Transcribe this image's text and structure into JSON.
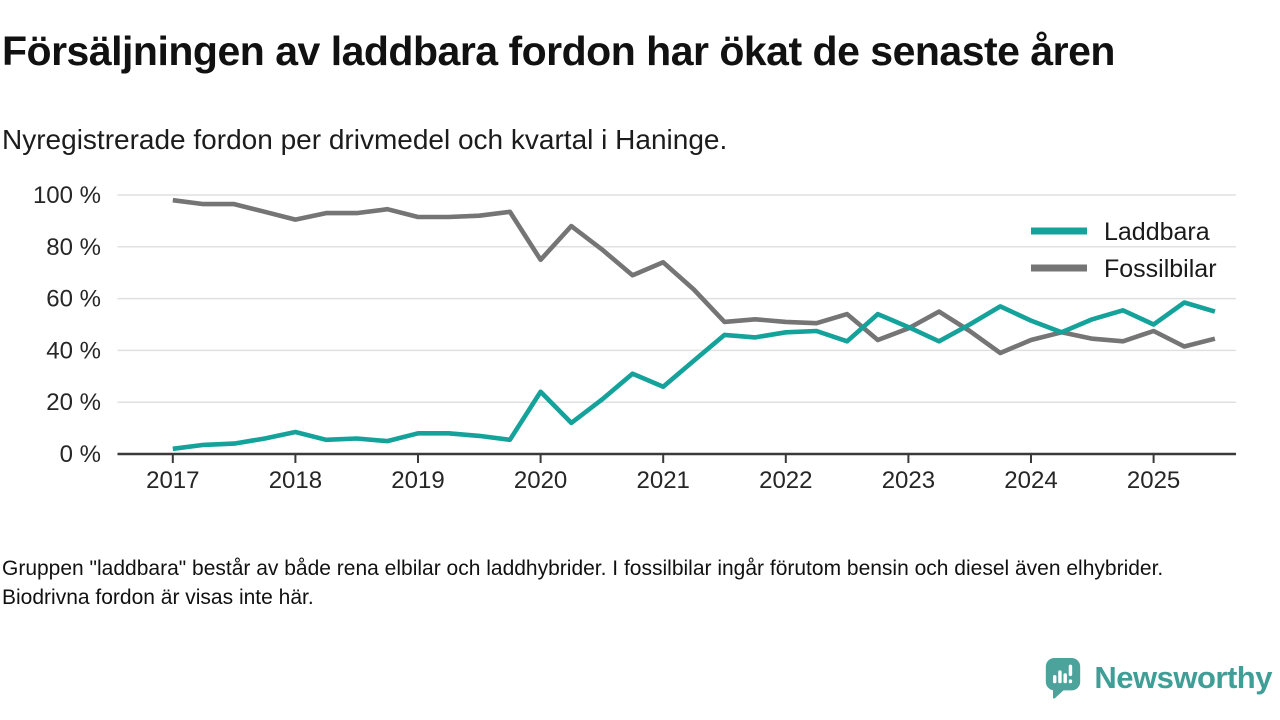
{
  "title": "Försäljningen av laddbara fordon har ökat de senaste åren",
  "subtitle": "Nyregistrerade fordon per drivmedel och kvartal i Haninge.",
  "footnote": "Gruppen \"laddbara\" består av både rena elbilar och laddhybrider. I fossilbilar ingår förutom bensin och diesel även elhybrider. Biodrivna fordon är visas inte här.",
  "branding": {
    "name": "Newsworthy",
    "icon": "bar-chart-speech-bubble-icon",
    "icon_color": "#4ba39b",
    "wordmark_color": "#3f9e96"
  },
  "colors": {
    "laddbara": "#14a29b",
    "fossilbilar": "#757575",
    "axis": "#3a3a3a",
    "gridline": "#e0e0e0",
    "tick_text": "#262626"
  },
  "chart_data": {
    "type": "line",
    "title": "Försäljningen av laddbara fordon har ökat de senaste åren",
    "subtitle": "Nyregistrerade fordon per drivmedel och kvartal i Haninge.",
    "x_unit": "quarter",
    "ylim": [
      0,
      100
    ],
    "grid": "horizontal",
    "legend_position": "top-right-inside",
    "y_ticks": [
      {
        "value": 0,
        "label": "0 %"
      },
      {
        "value": 20,
        "label": "20 %"
      },
      {
        "value": 40,
        "label": "40 %"
      },
      {
        "value": 60,
        "label": "60 %"
      },
      {
        "value": 80,
        "label": "80 %"
      },
      {
        "value": 100,
        "label": "100 %"
      }
    ],
    "x_ticks": [
      "2017",
      "2018",
      "2019",
      "2020",
      "2021",
      "2022",
      "2023",
      "2024",
      "2025"
    ],
    "quarters": [
      "2017 Q1",
      "2017 Q2",
      "2017 Q3",
      "2017 Q4",
      "2018 Q1",
      "2018 Q2",
      "2018 Q3",
      "2018 Q4",
      "2019 Q1",
      "2019 Q2",
      "2019 Q3",
      "2019 Q4",
      "2020 Q1",
      "2020 Q2",
      "2020 Q3",
      "2020 Q4",
      "2021 Q1",
      "2021 Q2",
      "2021 Q3",
      "2021 Q4",
      "2022 Q1",
      "2022 Q2",
      "2022 Q3",
      "2022 Q4",
      "2023 Q1",
      "2023 Q2",
      "2023 Q3",
      "2023 Q4",
      "2024 Q1",
      "2024 Q2",
      "2024 Q3",
      "2024 Q4",
      "2025 Q1",
      "2025 Q2",
      "2025 Q3"
    ],
    "series": [
      {
        "name": "Laddbara",
        "color": "#14a29b",
        "values": [
          2,
          3.5,
          4,
          6,
          8.5,
          5.5,
          6,
          5,
          8,
          8,
          7,
          5.5,
          24,
          12,
          21,
          31,
          26,
          36,
          46,
          45,
          47,
          47.5,
          43.5,
          54,
          49,
          43.5,
          50,
          57,
          51.5,
          47,
          52,
          55.5,
          50,
          58.5,
          55
        ]
      },
      {
        "name": "Fossilbilar",
        "color": "#757575",
        "values": [
          98,
          96.5,
          96.5,
          93.5,
          90.5,
          93,
          93,
          94.5,
          91.5,
          91.5,
          92,
          93.5,
          75,
          88,
          79,
          69,
          74,
          63.5,
          51,
          52,
          51,
          50.5,
          54,
          44,
          48.5,
          55,
          47.5,
          39,
          44,
          47,
          44.5,
          43.5,
          47.5,
          41.5,
          44.5
        ]
      }
    ]
  }
}
